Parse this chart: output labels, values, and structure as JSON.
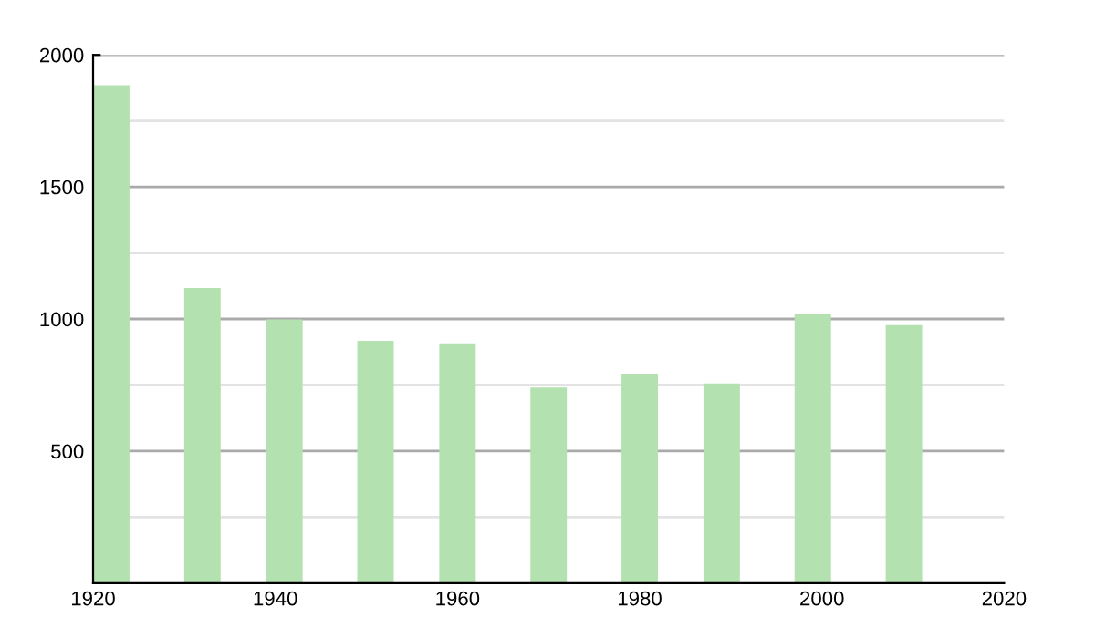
{
  "chart_data": {
    "type": "bar",
    "x": [
      1922,
      1932,
      1941,
      1951,
      1960,
      1970,
      1980,
      1989,
      1999,
      2009
    ],
    "values": [
      1885,
      1117,
      998,
      917,
      908,
      740,
      793,
      756,
      1018,
      977
    ],
    "color": "#b3e2b0",
    "xlim": [
      1920,
      2020
    ],
    "xticks": [
      1920,
      1940,
      1960,
      1980,
      2000,
      2020
    ],
    "ylim": [
      0,
      2000
    ],
    "yticks": [
      {
        "value": 250,
        "label": null
      },
      500,
      {
        "value": 750,
        "label": null
      },
      1000,
      {
        "value": 1250,
        "label": null
      },
      1500,
      {
        "value": 1750,
        "label": null
      },
      2000
    ],
    "grid": "y",
    "legend": false
  }
}
